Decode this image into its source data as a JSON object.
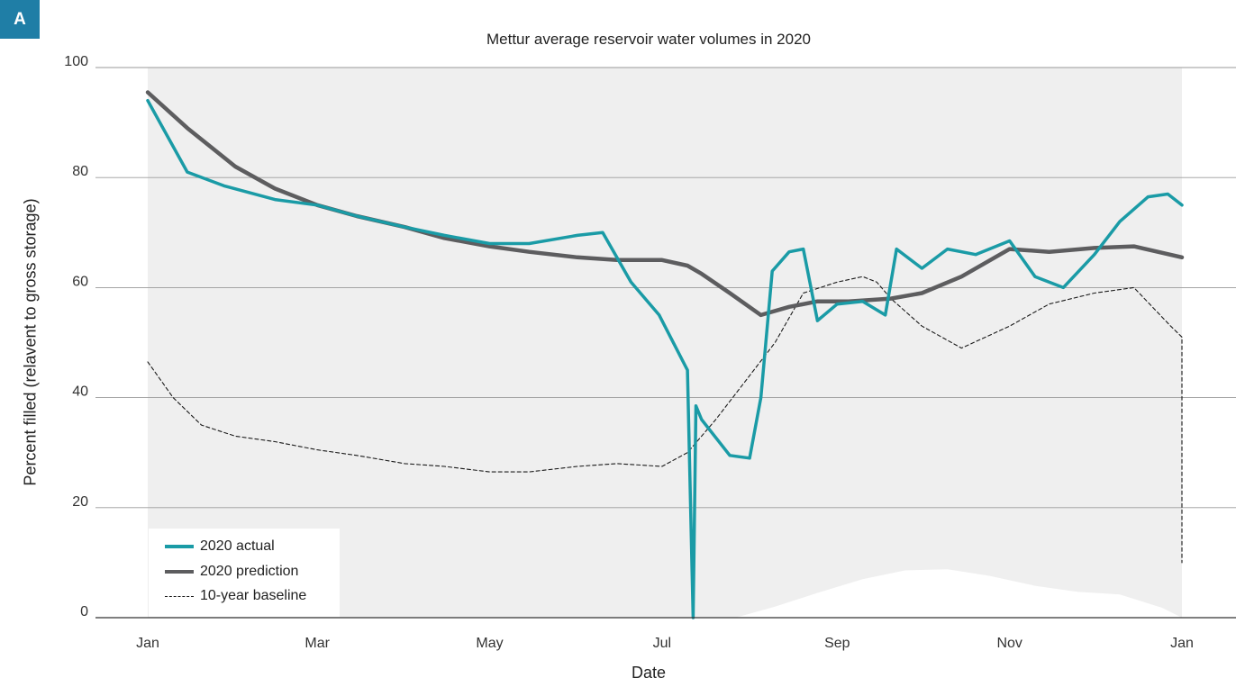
{
  "panel_label": "A",
  "chart_data": {
    "type": "line",
    "title": "Mettur average reservoir water volumes in 2020",
    "xlabel": "Date",
    "ylabel": "Percent filled (relavent to gross storage)",
    "x_tick_labels": [
      "Jan",
      "Mar",
      "May",
      "Jul",
      "Sep",
      "Nov",
      "Jan"
    ],
    "y_ticks": [
      0,
      20,
      40,
      60,
      80,
      100
    ],
    "ylim": [
      0,
      100
    ],
    "grid": "horizontal",
    "legend_position": "bottom-left",
    "colors": {
      "actual": "#1a9ba6",
      "prediction": "#5d5d5f",
      "baseline": "#1a1a1a",
      "shaded_band": "#efefef"
    },
    "series": [
      {
        "name": "2020 actual",
        "style": "solid-thick",
        "x": [
          "2020-01-01",
          "2020-01-15",
          "2020-01-28",
          "2020-02-15",
          "2020-03-01",
          "2020-03-15",
          "2020-04-01",
          "2020-04-15",
          "2020-05-01",
          "2020-05-15",
          "2020-06-01",
          "2020-06-10",
          "2020-06-20",
          "2020-06-30",
          "2020-07-10",
          "2020-07-12",
          "2020-07-13",
          "2020-07-15",
          "2020-07-25",
          "2020-08-01",
          "2020-08-05",
          "2020-08-09",
          "2020-08-15",
          "2020-08-20",
          "2020-08-25",
          "2020-09-01",
          "2020-09-10",
          "2020-09-18",
          "2020-09-22",
          "2020-10-01",
          "2020-10-10",
          "2020-10-20",
          "2020-11-01",
          "2020-11-10",
          "2020-11-20",
          "2020-12-01",
          "2020-12-10",
          "2020-12-20",
          "2020-12-27",
          "2021-01-01"
        ],
        "values": [
          94,
          81,
          78.5,
          76,
          75,
          73,
          71,
          69.5,
          68,
          68,
          69.5,
          70,
          61,
          55,
          45,
          0,
          38.5,
          36,
          29.5,
          29,
          40,
          63,
          66.5,
          67,
          54,
          57,
          57.5,
          55,
          67,
          63.5,
          67,
          66,
          68.5,
          62,
          60,
          66,
          72,
          76.5,
          77,
          75
        ]
      },
      {
        "name": "2020 prediction",
        "style": "solid-thick",
        "x": [
          "2020-01-01",
          "2020-01-15",
          "2020-02-01",
          "2020-02-15",
          "2020-03-01",
          "2020-03-15",
          "2020-04-01",
          "2020-04-15",
          "2020-05-01",
          "2020-05-15",
          "2020-06-01",
          "2020-06-15",
          "2020-07-01",
          "2020-07-10",
          "2020-07-15",
          "2020-07-25",
          "2020-08-05",
          "2020-08-15",
          "2020-08-25",
          "2020-09-05",
          "2020-09-20",
          "2020-10-01",
          "2020-10-15",
          "2020-11-01",
          "2020-11-15",
          "2020-12-01",
          "2020-12-15",
          "2021-01-01"
        ],
        "values": [
          95.5,
          89,
          82,
          78,
          75,
          73,
          71,
          69,
          67.5,
          66.5,
          65.5,
          65,
          65,
          64,
          62.5,
          59,
          55,
          56.5,
          57.5,
          57.5,
          58,
          59,
          62,
          67,
          66.5,
          67.2,
          67.5,
          65.5
        ]
      },
      {
        "name": "10-year baseline",
        "style": "dashed-thin",
        "x": [
          "2020-01-01",
          "2020-01-10",
          "2020-01-20",
          "2020-02-01",
          "2020-02-15",
          "2020-03-01",
          "2020-03-15",
          "2020-04-01",
          "2020-04-15",
          "2020-05-01",
          "2020-05-15",
          "2020-06-01",
          "2020-06-15",
          "2020-07-01",
          "2020-07-10",
          "2020-07-20",
          "2020-08-01",
          "2020-08-10",
          "2020-08-20",
          "2020-09-01",
          "2020-09-10",
          "2020-09-15",
          "2020-09-20",
          "2020-10-01",
          "2020-10-15",
          "2020-11-01",
          "2020-11-15",
          "2020-12-01",
          "2020-12-15",
          "2020-12-28",
          "2021-01-01",
          "2021-01-01"
        ],
        "values": [
          46.5,
          40,
          35,
          33,
          32,
          30.5,
          29.5,
          28,
          27.5,
          26.5,
          26.5,
          27.5,
          28,
          27.5,
          30,
          36,
          44,
          50,
          59,
          61,
          62,
          61,
          58,
          53,
          49,
          53,
          57,
          59,
          60,
          53,
          51,
          10
        ]
      }
    ]
  }
}
